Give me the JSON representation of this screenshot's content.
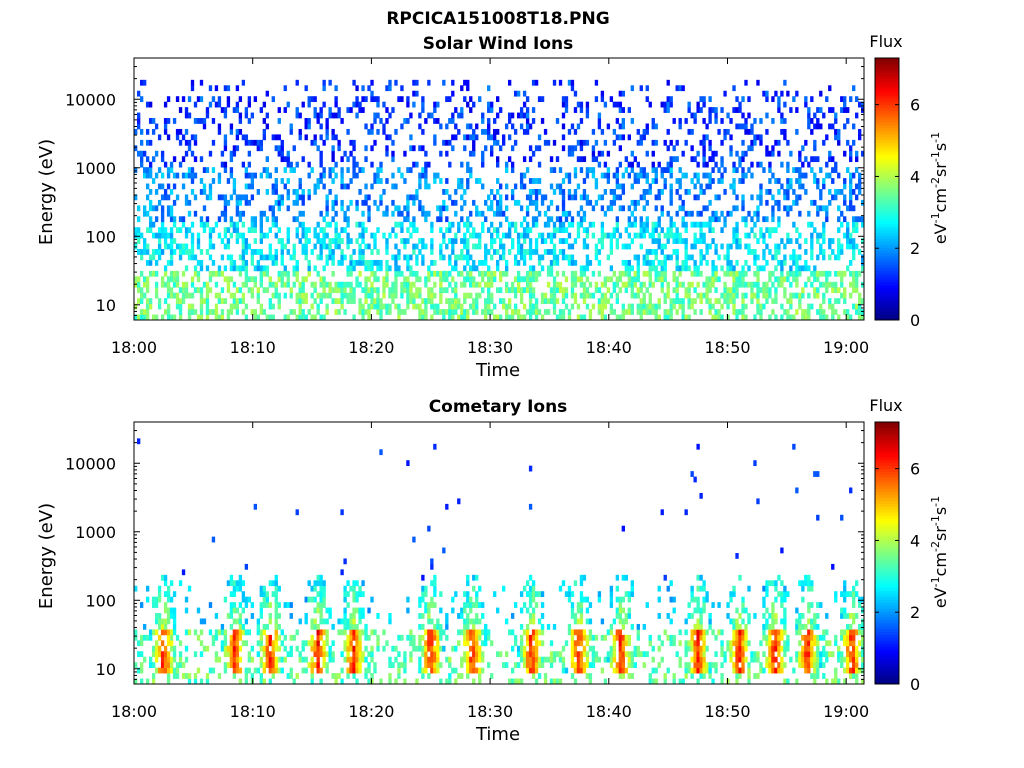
{
  "figure": {
    "title": "RPCICA151008T18.PNG"
  },
  "colors": {
    "colormap": "jet",
    "background": "#ffffff",
    "axis": "#000000"
  },
  "chart_data": [
    {
      "type": "heatmap",
      "title": "Solar Wind Ions",
      "xlabel": "Time",
      "ylabel": "Energy (eV)",
      "x_ticks": [
        "18:00",
        "18:10",
        "18:20",
        "18:30",
        "18:40",
        "18:50",
        "19:00"
      ],
      "xlim": [
        "18:00",
        "19:01:30"
      ],
      "y_scale": "log",
      "ylim": [
        6,
        40000
      ],
      "y_ticks": [
        "10",
        "100",
        "1000",
        "10000"
      ],
      "colorbar": {
        "label": "Flux",
        "units_label": "eV-1cm-2sr-1s-1",
        "range": [
          0,
          7.3
        ],
        "ticks": [
          "0",
          "2",
          "4",
          "6"
        ]
      },
      "description": "Sparse blue/cyan counts spread from ~10 eV to ~20000 eV; flux mostly 1-3, with green/yellow (3.5-5) at energies below 30 eV",
      "energy_bands": [
        {
          "energy_range": [
            6,
            30
          ],
          "typical_flux": 3.5
        },
        {
          "energy_range": [
            30,
            150
          ],
          "typical_flux": 2.6
        },
        {
          "energy_range": [
            150,
            1000
          ],
          "typical_flux": 1.9
        },
        {
          "energy_range": [
            1000,
            20000
          ],
          "typical_flux": 1.3
        }
      ]
    },
    {
      "type": "heatmap",
      "title": "Cometary Ions",
      "xlabel": "Time",
      "ylabel": "Energy (eV)",
      "x_ticks": [
        "18:00",
        "18:10",
        "18:20",
        "18:30",
        "18:40",
        "18:50",
        "19:00"
      ],
      "xlim": [
        "18:00",
        "19:01:30"
      ],
      "y_scale": "log",
      "ylim": [
        6,
        40000
      ],
      "y_ticks": [
        "10",
        "100",
        "1000",
        "10000"
      ],
      "colorbar": {
        "label": "Flux",
        "units_label": "eV-1cm-2sr-1s-1",
        "range": [
          0,
          7.3
        ],
        "ticks": [
          "0",
          "2",
          "4",
          "6"
        ]
      },
      "description": "Periodic bursts roughly every 3-4 minutes with peak flux 5.5-6.5 at 8-40 eV; sparse isolated counts up to ~25000 eV",
      "burst_times": [
        "18:02:30",
        "18:08:30",
        "18:11:30",
        "18:15:30",
        "18:18:30",
        "18:25:00",
        "18:28:30",
        "18:33:30",
        "18:37:30",
        "18:41:00",
        "18:47:30",
        "18:51:00",
        "18:54:00",
        "18:56:45",
        "19:00:30"
      ],
      "burst_energy_range": [
        8,
        40
      ],
      "burst_peak_flux": 6.2
    }
  ]
}
